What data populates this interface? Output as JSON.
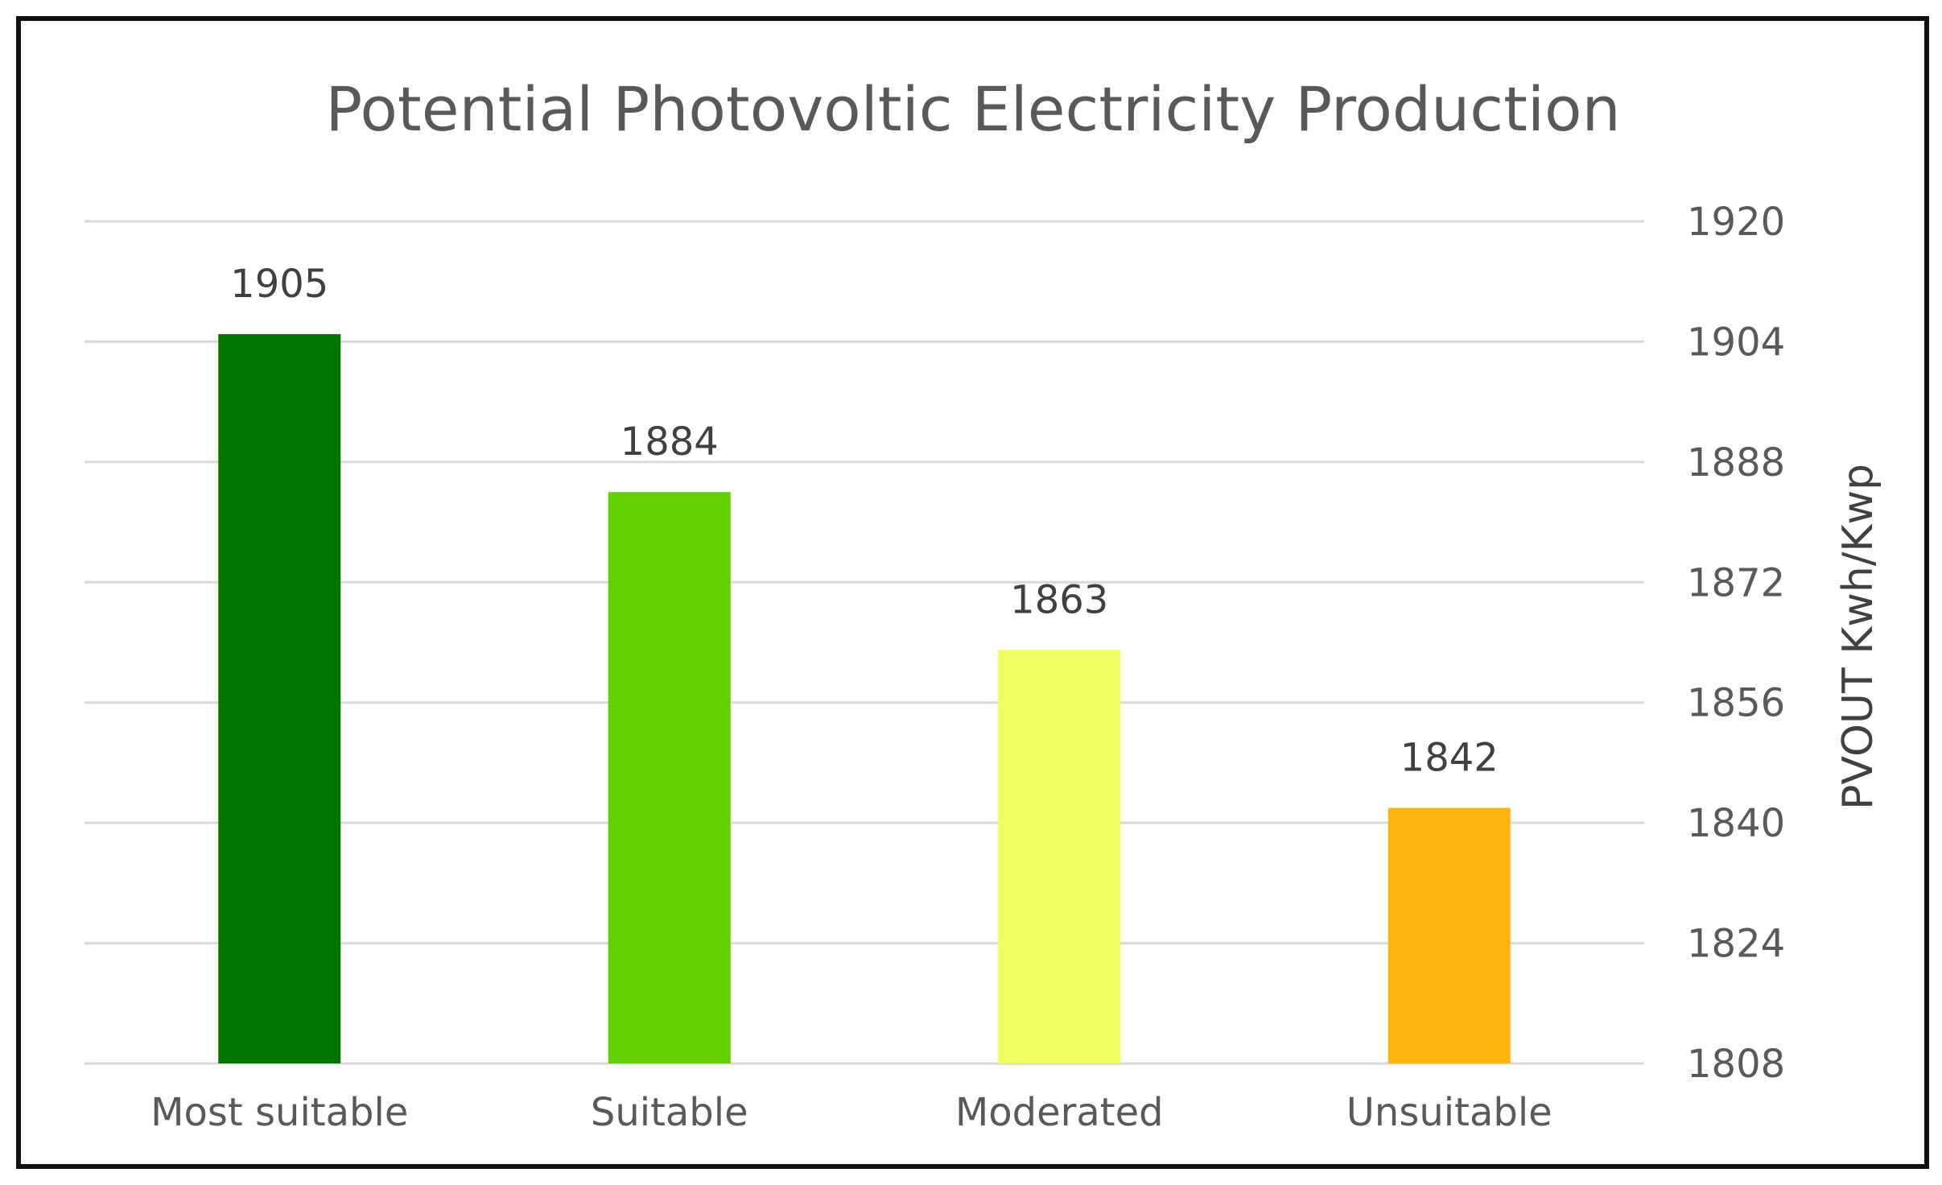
{
  "chart_data": {
    "type": "bar",
    "title": "Potential Photovoltic Electricity Production",
    "categories": [
      "Most suitable",
      "Suitable",
      "Moderated",
      "Unsuitable"
    ],
    "values": [
      1905,
      1884,
      1863,
      1842
    ],
    "data_labels": [
      "1905",
      "1884",
      "1863",
      "1842"
    ],
    "colors": [
      "#007500",
      "#62cf00",
      "#f1fe60",
      "#ffb40e"
    ],
    "xlabel": "",
    "ylabel": "PVOUT Kwh/Kwp",
    "y_axis_side": "right",
    "ylim": [
      1808,
      1920
    ],
    "yticks": [
      1808,
      1824,
      1840,
      1856,
      1872,
      1888,
      1904,
      1920
    ],
    "ytick_labels": [
      "1808",
      "1824",
      "1840",
      "1856",
      "1872",
      "1888",
      "1904",
      "1920"
    ],
    "grid": true,
    "legend": "none"
  }
}
